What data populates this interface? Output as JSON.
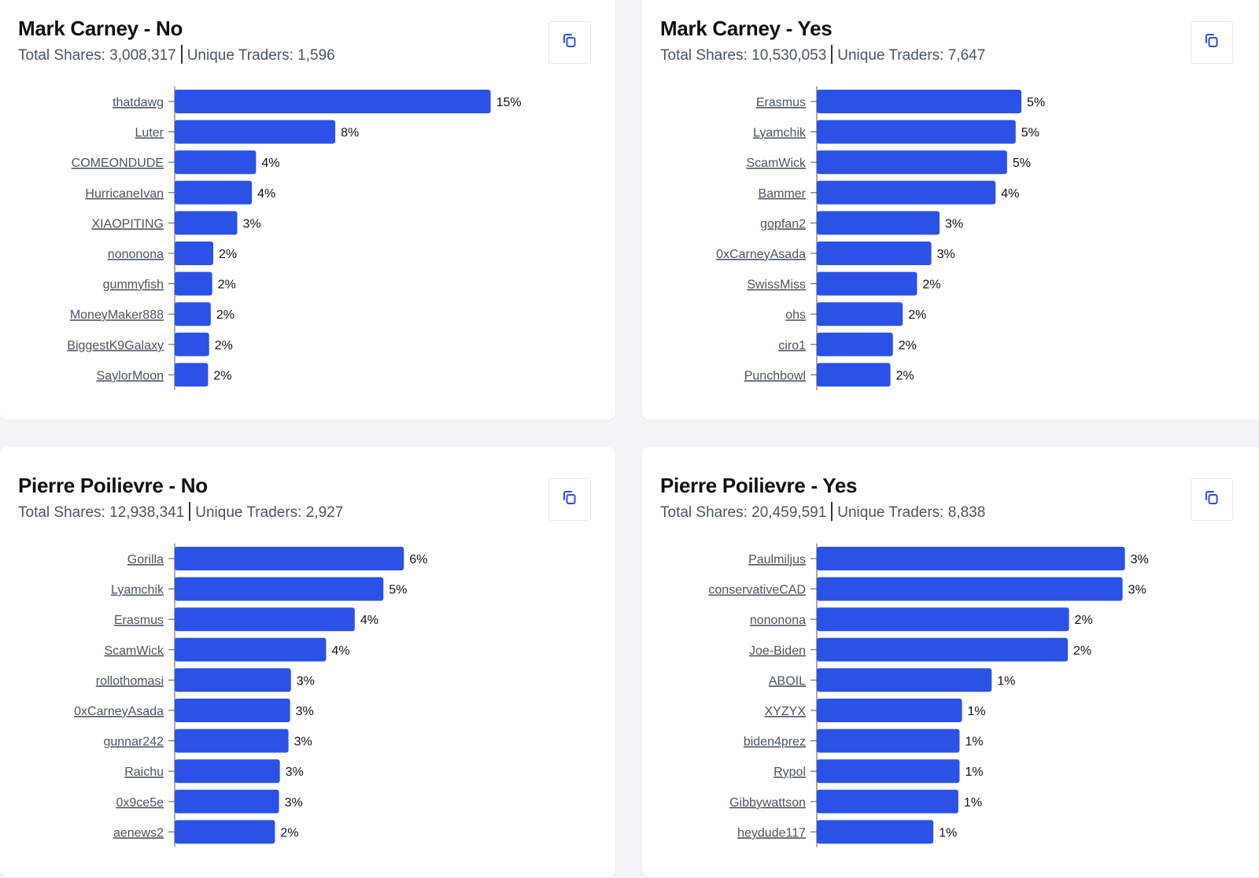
{
  "colors": {
    "bar": "#2a52e6",
    "axis": "#555555",
    "accent": "#2a52e6"
  },
  "copy_icon": "copy-icon",
  "chart_data": [
    {
      "type": "bar",
      "orientation": "horizontal",
      "title": "Mark Carney - No",
      "total_shares_label": "Total Shares: 3,008,317",
      "unique_traders_label": "Unique Traders: 1,596",
      "xlim": [
        0,
        16.6
      ],
      "categories": [
        "thatdawg",
        "Luter",
        "COMEONDUDE",
        "HurricaneIvan",
        "XIAOPITING",
        "nononona",
        "gummyfish",
        "MoneyMaker888",
        "BiggestK9Galaxy",
        "SaylorMoon"
      ],
      "values": [
        15.15,
        7.7,
        3.9,
        3.7,
        3.0,
        1.85,
        1.8,
        1.73,
        1.65,
        1.6
      ],
      "labels": [
        "15%",
        "8%",
        "4%",
        "4%",
        "3%",
        "2%",
        "2%",
        "2%",
        "2%",
        "2%"
      ]
    },
    {
      "type": "bar",
      "orientation": "horizontal",
      "title": "Mark Carney - Yes",
      "total_shares_label": "Total Shares: 10,530,053",
      "unique_traders_label": "Unique Traders: 7,647",
      "xlim": [
        0,
        8.46
      ],
      "categories": [
        "Erasmus",
        "Lyamchik",
        "ScamWick",
        "Bammer",
        "gopfan2",
        "0xCarneyAsada",
        "SwissMiss",
        "ohs",
        "ciro1",
        "Punchbowl"
      ],
      "values": [
        5.0,
        4.86,
        4.65,
        4.37,
        3.0,
        2.8,
        2.45,
        2.1,
        1.86,
        1.8
      ],
      "labels": [
        "5%",
        "5%",
        "5%",
        "4%",
        "3%",
        "3%",
        "2%",
        "2%",
        "2%",
        "2%"
      ]
    },
    {
      "type": "bar",
      "orientation": "horizontal",
      "title": "Pierre Poilievre - No",
      "total_shares_label": "Total Shares: 12,938,341",
      "unique_traders_label": "Unique Traders: 2,927",
      "xlim": [
        0,
        8.46
      ],
      "categories": [
        "Gorilla",
        "Lyamchik",
        "Erasmus",
        "ScamWick",
        "rollothomasi",
        "0xCarneyAsada",
        "gunnar242",
        "Raichu",
        "0x9ce5e",
        "aenews2"
      ],
      "values": [
        5.6,
        5.1,
        4.4,
        3.7,
        2.84,
        2.82,
        2.78,
        2.57,
        2.55,
        2.45
      ],
      "labels": [
        "6%",
        "5%",
        "4%",
        "4%",
        "3%",
        "3%",
        "3%",
        "3%",
        "3%",
        "2%"
      ]
    },
    {
      "type": "bar",
      "orientation": "horizontal",
      "title": "Pierre Poilievre - Yes",
      "total_shares_label": "Total Shares: 20,459,591",
      "unique_traders_label": "Unique Traders: 8,838",
      "xlim": [
        0,
        2.91
      ],
      "categories": [
        "Paulmiljus",
        "conservativeCAD",
        "nononona",
        "Joe-Biden",
        "ABOIL",
        "XYZYX",
        "biden4prez",
        "Rypol",
        "Gibbywattson",
        "heydude117"
      ],
      "values": [
        2.59,
        2.57,
        2.12,
        2.11,
        1.47,
        1.22,
        1.2,
        1.2,
        1.19,
        0.98
      ],
      "labels": [
        "3%",
        "3%",
        "2%",
        "2%",
        "1%",
        "1%",
        "1%",
        "1%",
        "1%",
        "1%"
      ]
    }
  ]
}
